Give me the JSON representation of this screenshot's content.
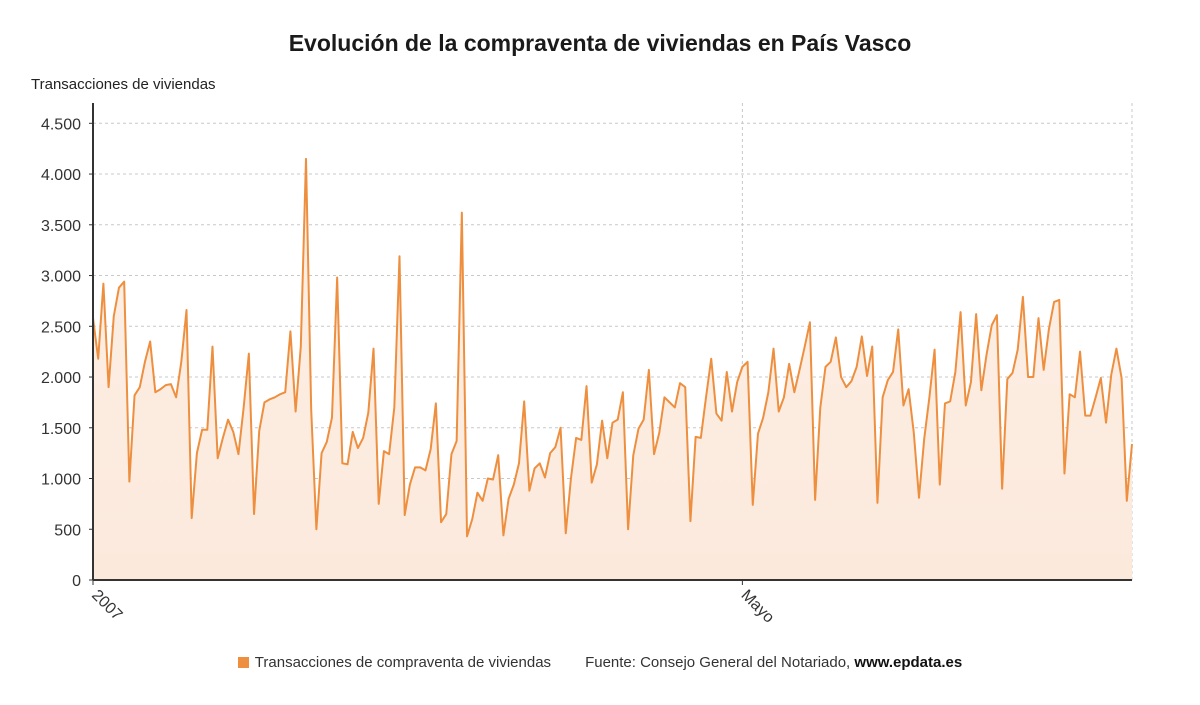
{
  "chart_data": {
    "type": "area",
    "title": "Evolución de la compraventa de viviendas en País Vasco",
    "ylabel": "Transacciones de viviendas",
    "ylim": [
      0,
      4700
    ],
    "yticks": [
      {
        "value": 0,
        "label": "0"
      },
      {
        "value": 500,
        "label": "500"
      },
      {
        "value": 1000,
        "label": "1.000"
      },
      {
        "value": 1500,
        "label": "1.500"
      },
      {
        "value": 2000,
        "label": "2.000"
      },
      {
        "value": 2500,
        "label": "2.500"
      },
      {
        "value": 3000,
        "label": "3.000"
      },
      {
        "value": 3500,
        "label": "3.500"
      },
      {
        "value": 4000,
        "label": "4.000"
      },
      {
        "value": 4500,
        "label": "4.500"
      }
    ],
    "xticks": [
      {
        "index": 0,
        "label": "2007"
      },
      {
        "index": 125,
        "label": "Mayo"
      }
    ],
    "grid": true,
    "color": "#ee8f3f",
    "fill_color": "#fdf0e6",
    "series": [
      {
        "name": "Transacciones de compraventa de viviendas",
        "values": [
          2580,
          2180,
          2920,
          1900,
          2600,
          2880,
          2940,
          970,
          1820,
          1900,
          2150,
          2350,
          1850,
          1880,
          1920,
          1930,
          1800,
          2150,
          2660,
          610,
          1250,
          1480,
          1480,
          2300,
          1200,
          1400,
          1580,
          1460,
          1240,
          1700,
          2230,
          650,
          1470,
          1750,
          1780,
          1800,
          1830,
          1850,
          2450,
          1660,
          2300,
          4150,
          1680,
          500,
          1250,
          1360,
          1600,
          2980,
          1150,
          1140,
          1460,
          1300,
          1400,
          1650,
          2280,
          750,
          1270,
          1240,
          1700,
          3190,
          640,
          940,
          1110,
          1110,
          1080,
          1290,
          1740,
          570,
          650,
          1240,
          1370,
          3620,
          430,
          600,
          860,
          780,
          1000,
          990,
          1230,
          440,
          800,
          940,
          1150,
          1760,
          880,
          1100,
          1150,
          1010,
          1250,
          1310,
          1500,
          460,
          1000,
          1400,
          1380,
          1910,
          960,
          1140,
          1570,
          1200,
          1550,
          1580,
          1850,
          500,
          1230,
          1490,
          1580,
          2070,
          1240,
          1450,
          1800,
          1750,
          1700,
          1940,
          1900,
          580,
          1410,
          1400,
          1800,
          2180,
          1640,
          1570,
          2050,
          1660,
          1950,
          2100,
          2150,
          740,
          1440,
          1600,
          1850,
          2280,
          1660,
          1800,
          2130,
          1850,
          2070,
          2300,
          2540,
          790,
          1700,
          2100,
          2150,
          2390,
          2000,
          1900,
          1960,
          2100,
          2400,
          2010,
          2300,
          760,
          1800,
          1970,
          2050,
          2470,
          1720,
          1880,
          1450,
          810,
          1390,
          1800,
          2270,
          940,
          1740,
          1760,
          2050,
          2640,
          1720,
          1950,
          2620,
          1870,
          2220,
          2510,
          2610,
          900,
          1980,
          2040,
          2270,
          2790,
          2000,
          2000,
          2580,
          2070,
          2470,
          2740,
          2760,
          1050,
          1830,
          1800,
          2250,
          1620,
          1620,
          1800,
          1990,
          1550,
          2020,
          2280,
          1990,
          780,
          1340
        ]
      }
    ]
  },
  "legend": {
    "series_label": "Transacciones de compraventa de viviendas",
    "source_prefix": "Fuente: Consejo General del Notariado,",
    "source_site": "www.epdata.es"
  }
}
